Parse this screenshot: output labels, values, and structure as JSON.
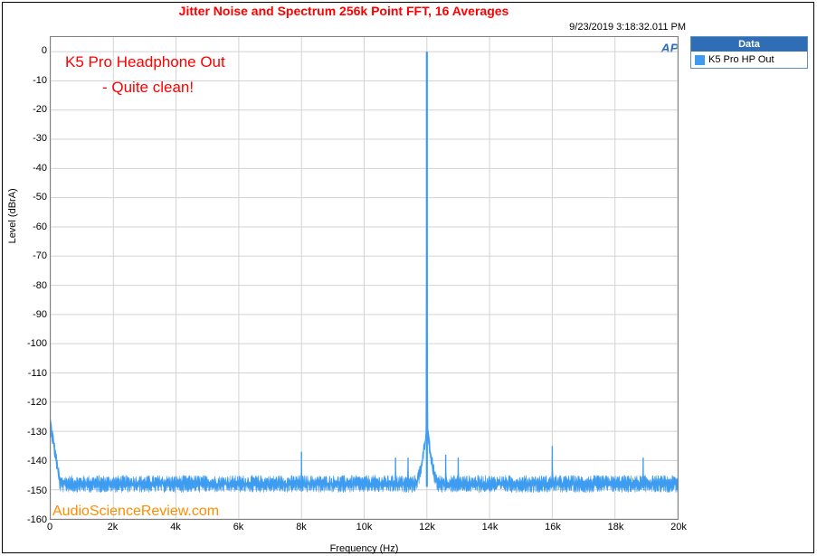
{
  "chart": {
    "title": "Jitter Noise and Spectrum 256k Point FFT, 16 Averages",
    "title_color": "#ff0000",
    "timestamp": "9/23/2019 3:18:32.011 PM",
    "ap_logo_text": "AP",
    "ap_logo_color": "#2f6eb5",
    "xlabel": "Frequency (Hz)",
    "ylabel": "Level (dBrA)",
    "xlim": [
      0,
      20000
    ],
    "ylim": [
      -160,
      5
    ],
    "xtick_step": 2000,
    "ytick_step": 10,
    "x_ticks": [
      {
        "v": 0,
        "label": "0"
      },
      {
        "v": 2000,
        "label": "2k"
      },
      {
        "v": 4000,
        "label": "4k"
      },
      {
        "v": 6000,
        "label": "6k"
      },
      {
        "v": 8000,
        "label": "8k"
      },
      {
        "v": 10000,
        "label": "10k"
      },
      {
        "v": 12000,
        "label": "12k"
      },
      {
        "v": 14000,
        "label": "14k"
      },
      {
        "v": 16000,
        "label": "16k"
      },
      {
        "v": 18000,
        "label": "18k"
      },
      {
        "v": 20000,
        "label": "20k"
      }
    ],
    "y_ticks": [
      {
        "v": 0,
        "label": "0"
      },
      {
        "v": -10,
        "label": "-10"
      },
      {
        "v": -20,
        "label": "-20"
      },
      {
        "v": -30,
        "label": "-30"
      },
      {
        "v": -40,
        "label": "-40"
      },
      {
        "v": -50,
        "label": "-50"
      },
      {
        "v": -60,
        "label": "-60"
      },
      {
        "v": -70,
        "label": "-70"
      },
      {
        "v": -80,
        "label": "-80"
      },
      {
        "v": -90,
        "label": "-90"
      },
      {
        "v": -100,
        "label": "-100"
      },
      {
        "v": -110,
        "label": "-110"
      },
      {
        "v": -120,
        "label": "-120"
      },
      {
        "v": -130,
        "label": "-130"
      },
      {
        "v": -140,
        "label": "-140"
      },
      {
        "v": -150,
        "label": "-150"
      },
      {
        "v": -160,
        "label": "-160"
      }
    ],
    "grid_color": "#d3d3d3",
    "background_color": "#ffffff",
    "series_color": "#3d9cf0",
    "noise_floor_mean": -148,
    "noise_amplitude": 3,
    "noise_left_start": -128,
    "spikes": [
      {
        "freq": 8000,
        "level": -137
      },
      {
        "freq": 11000,
        "level": -139
      },
      {
        "freq": 11400,
        "level": -139
      },
      {
        "freq": 12000,
        "level": 0
      },
      {
        "freq": 12600,
        "level": -138
      },
      {
        "freq": 13000,
        "level": -139
      },
      {
        "freq": 16000,
        "level": -135
      },
      {
        "freq": 18900,
        "level": -139
      }
    ],
    "peak_skirt_width": 400,
    "peak_skirt_level": -128
  },
  "legend": {
    "header": "Data",
    "header_bg": "#2f6eb5",
    "header_fg": "#ffffff",
    "items": [
      {
        "label": "K5 Pro HP Out",
        "color": "#3d9cf0"
      }
    ]
  },
  "annotations": {
    "line1": "K5 Pro Headphone Out",
    "line2": "- Quite clean!",
    "color": "#ff0000"
  },
  "watermark": {
    "text": "AudioScienceReview.com",
    "color": "#ff8c00"
  }
}
